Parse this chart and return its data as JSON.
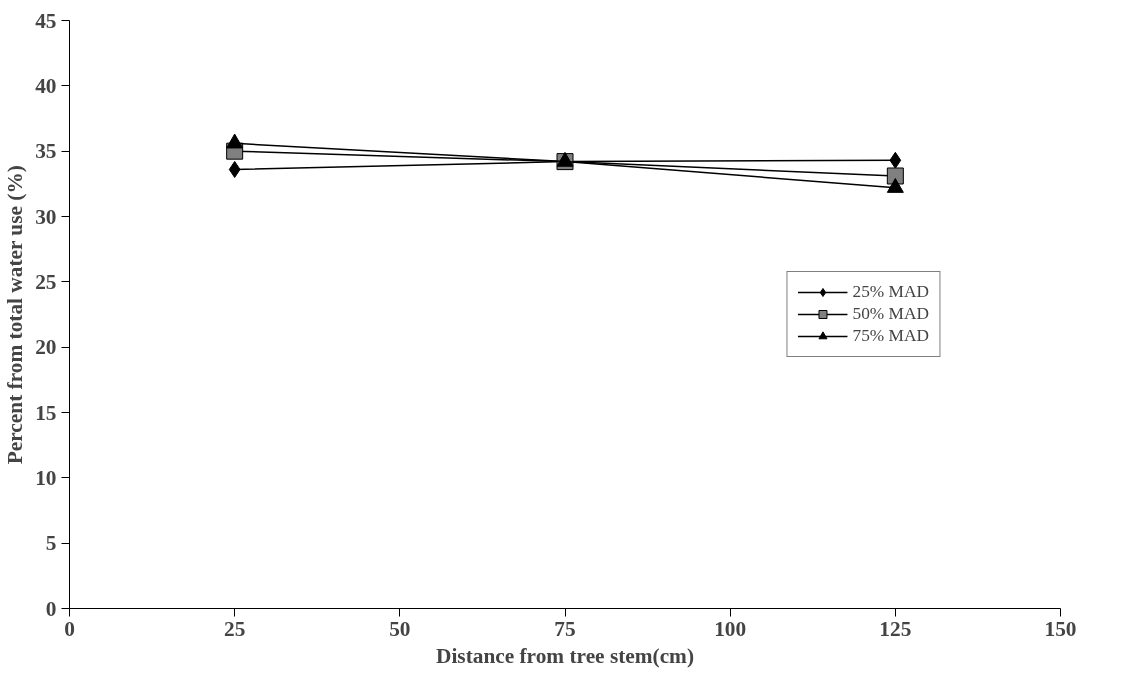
{
  "chart_data": {
    "type": "line",
    "xlabel": "Distance from tree stem(cm)",
    "ylabel": "Percent from total water use (%)",
    "x": [
      25,
      75,
      125
    ],
    "series": [
      {
        "name": "25% MAD",
        "color": "#000000",
        "marker": "diamond",
        "values": [
          33.6,
          34.2,
          34.3
        ]
      },
      {
        "name": "50% MAD",
        "color": "#808080",
        "marker": "square",
        "values": [
          35.0,
          34.2,
          33.1
        ]
      },
      {
        "name": "75% MAD",
        "color": "#000000",
        "marker": "triangle",
        "values": [
          35.6,
          34.2,
          32.2
        ]
      }
    ],
    "xlim": [
      0,
      150
    ],
    "xticks": [
      0,
      25,
      50,
      75,
      100,
      125,
      150
    ],
    "ylim": [
      0,
      45
    ],
    "yticks": [
      0,
      5,
      10,
      15,
      20,
      25,
      30,
      35,
      40,
      45
    ],
    "grid": false,
    "legend": "right",
    "line_style": "solid"
  }
}
